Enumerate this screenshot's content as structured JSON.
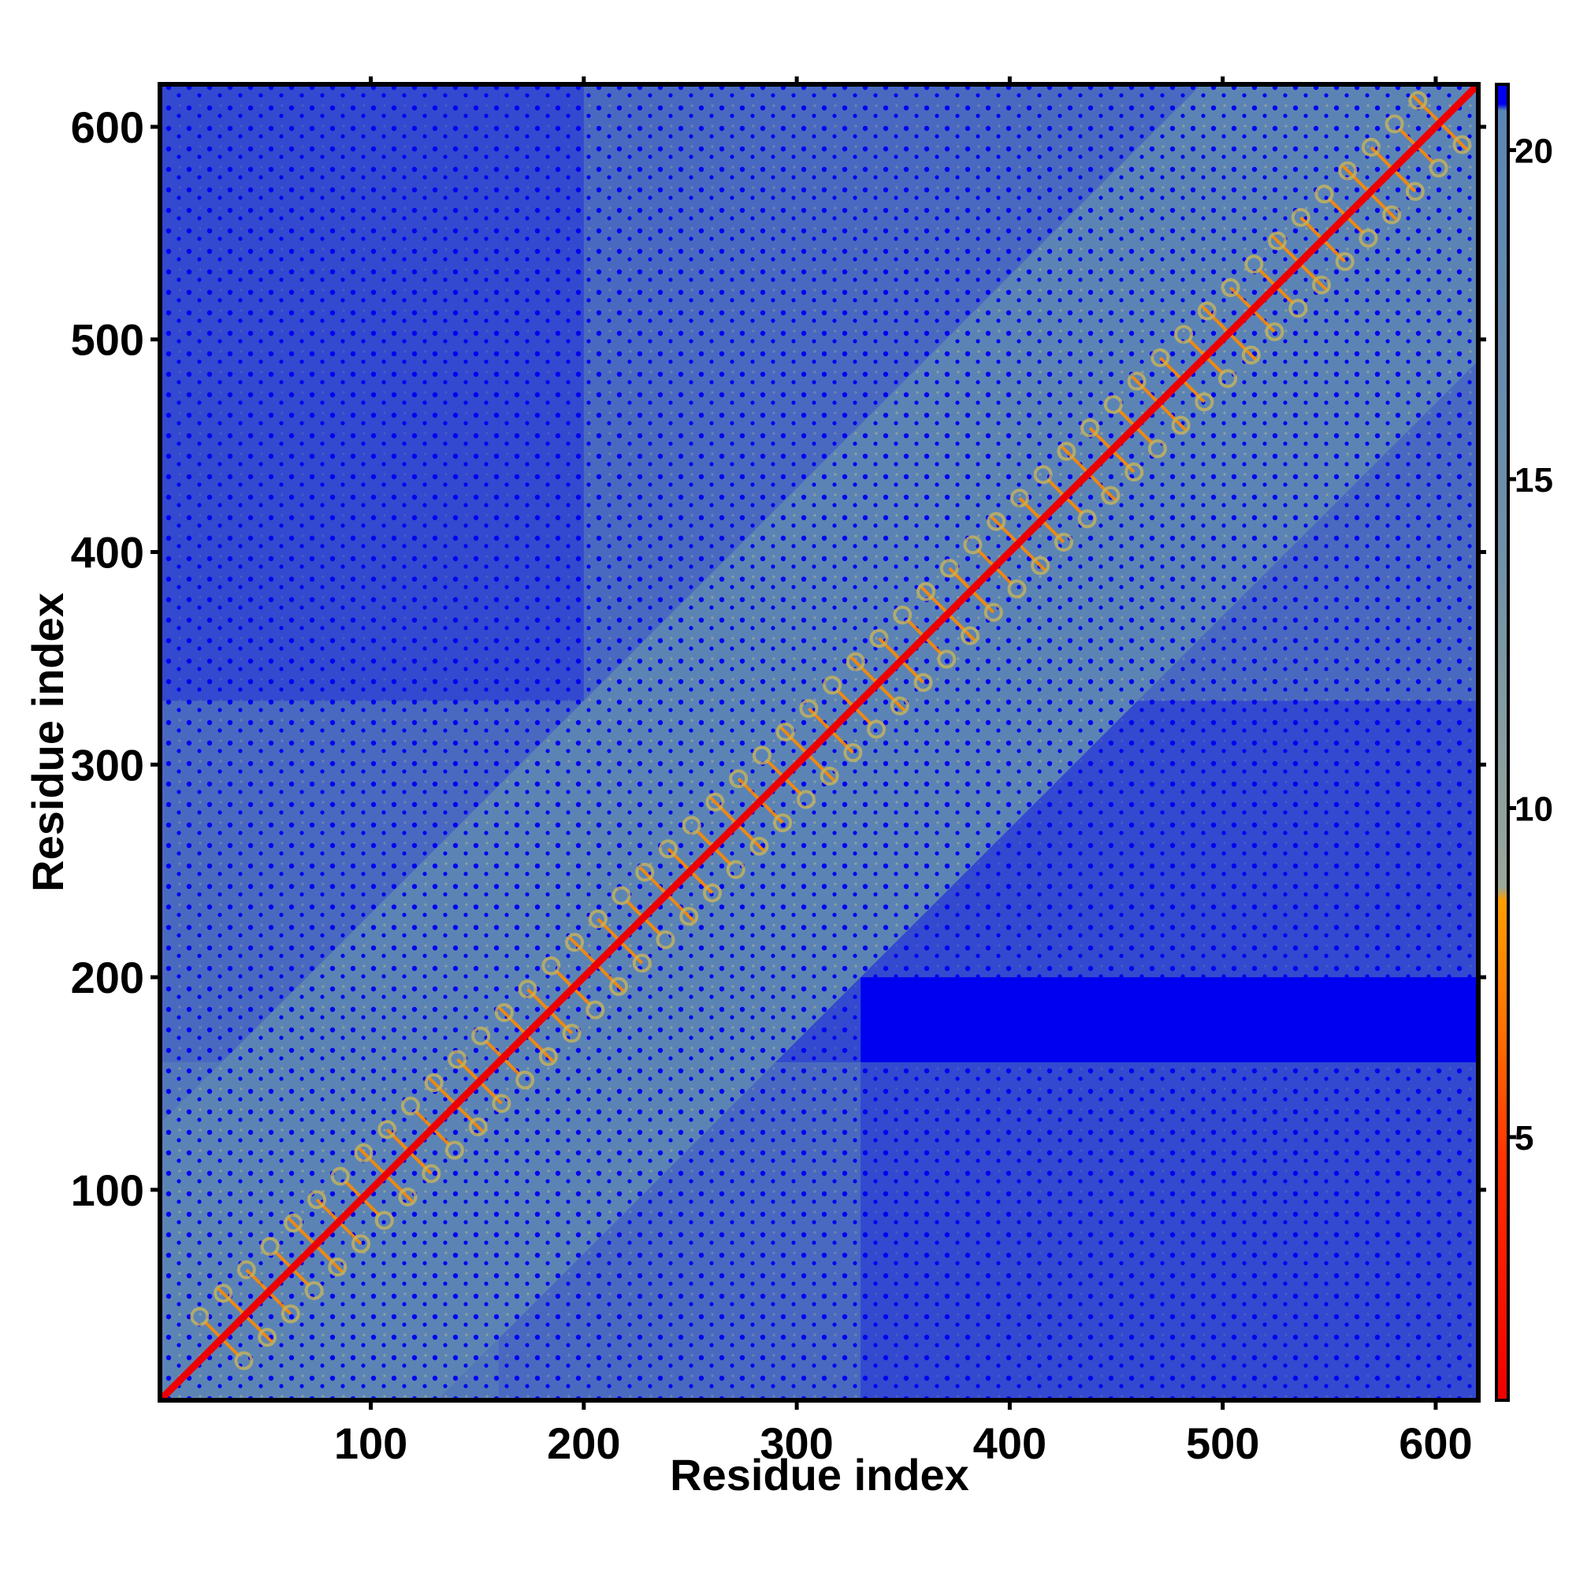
{
  "chart_data": {
    "type": "heatmap",
    "title": "",
    "xlabel": "Residue index",
    "ylabel": "Residue index",
    "xlim": [
      1,
      620
    ],
    "ylim": [
      1,
      620
    ],
    "x_ticks": [
      100,
      200,
      300,
      400,
      500,
      600
    ],
    "y_ticks": [
      100,
      200,
      300,
      400,
      500,
      600
    ],
    "x_tick_labels": [
      "100",
      "200",
      "300",
      "400",
      "500",
      "600"
    ],
    "y_tick_labels": [
      "100",
      "200",
      "300",
      "400",
      "500",
      "600"
    ],
    "colorbar": {
      "range": [
        1,
        21
      ],
      "ticks": [
        5,
        10,
        15,
        20
      ],
      "tick_labels": [
        "5",
        "10",
        "15",
        "20"
      ],
      "colors": [
        "#ee0000",
        "#ff5a00",
        "#ff9d00",
        "#9aa79a",
        "#5a86b6",
        "#0000f0"
      ]
    },
    "matrix_description_values": {
      "diagonal_value": 1,
      "background_value": 21,
      "near_diagonal_band_width_residues": 130
    },
    "grid": false,
    "legend": "colorbar-right"
  }
}
